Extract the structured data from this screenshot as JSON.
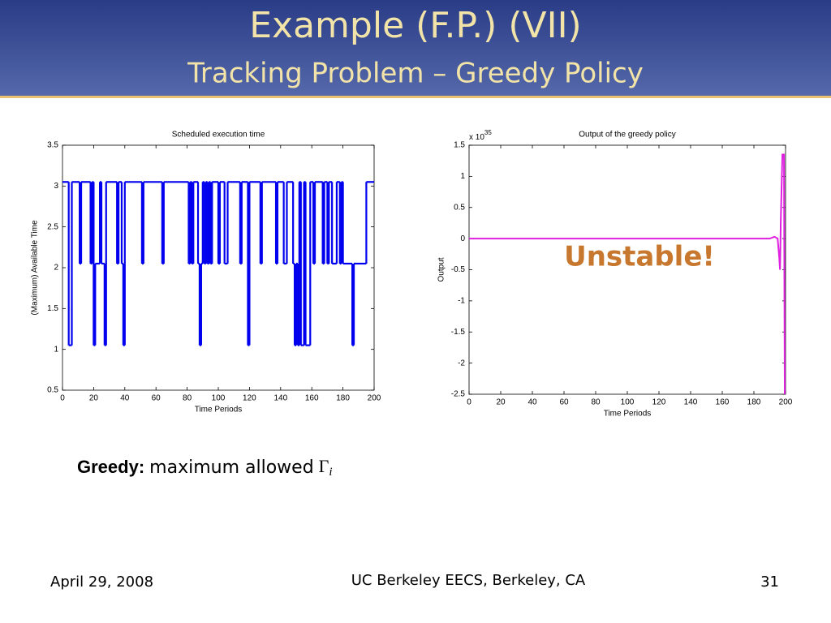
{
  "slide": {
    "title": "Example (F.P.) (VII)",
    "subtitle": "Tracking Problem – Greedy Policy",
    "caption": {
      "bold": "Greedy:",
      "text": "maximum allowed",
      "symbol": "Γ",
      "subscript": "i"
    },
    "footer": {
      "date": "April 29, 2008",
      "venue": "UC Berkeley EECS, Berkeley, CA",
      "page": "31"
    }
  },
  "chart_data": [
    {
      "type": "line",
      "step": true,
      "title": "Scheduled execution time",
      "xlabel": "Time Periods",
      "ylabel": "(Maximum) Available Time",
      "xlim": [
        0,
        200
      ],
      "ylim": [
        0.5,
        3.5
      ],
      "xticks": [
        0,
        20,
        40,
        60,
        80,
        100,
        120,
        140,
        160,
        180,
        200
      ],
      "yticks": [
        0.5,
        1,
        1.5,
        2,
        2.5,
        3,
        3.5
      ],
      "grid": false,
      "x": [
        0,
        4,
        6,
        11,
        12,
        18,
        19,
        20,
        21,
        24,
        25,
        27,
        28,
        35,
        36,
        38,
        39,
        40,
        51,
        52,
        64,
        65,
        81,
        82,
        83,
        84,
        87,
        88,
        89,
        90,
        91,
        92,
        93,
        94,
        95,
        96,
        100,
        101,
        104,
        106,
        114,
        115,
        119,
        120,
        127,
        128,
        137,
        138,
        142,
        144,
        148,
        149,
        150,
        151,
        152,
        153,
        155,
        156,
        159,
        161,
        162,
        167,
        168,
        170,
        171,
        173,
        176,
        178,
        179,
        180,
        186,
        187,
        195,
        200
      ],
      "series": [
        {
          "name": "Scheduled execution time",
          "color": "#0000ee",
          "values": [
            3.05,
            1.05,
            3.05,
            2.05,
            3.05,
            2.05,
            3.05,
            1.05,
            2.05,
            3.05,
            2.05,
            1.05,
            3.05,
            2.05,
            3.05,
            2.05,
            1.05,
            3.05,
            2.05,
            3.05,
            2.05,
            3.05,
            2.05,
            3.05,
            2.05,
            3.05,
            2.05,
            1.05,
            2.05,
            3.05,
            2.05,
            3.05,
            2.05,
            3.05,
            2.05,
            3.05,
            2.05,
            3.05,
            2.05,
            3.05,
            2.05,
            3.05,
            1.05,
            3.05,
            2.05,
            3.05,
            2.05,
            3.05,
            2.05,
            3.05,
            2.05,
            1.05,
            2.05,
            1.05,
            3.05,
            1.05,
            3.05,
            1.05,
            3.05,
            2.05,
            3.05,
            2.05,
            3.05,
            2.05,
            3.05,
            2.05,
            3.05,
            2.05,
            3.05,
            2.05,
            1.05,
            2.05,
            3.05,
            3.05
          ]
        }
      ]
    },
    {
      "type": "line",
      "step": false,
      "title": "Output of the greedy policy",
      "xlabel": "Time Periods",
      "ylabel": "Output",
      "y_multiplier": {
        "base": "x 10",
        "exponent": "35"
      },
      "annotation": "Unstable!",
      "xlim": [
        0,
        200
      ],
      "ylim": [
        -2.5,
        1.5
      ],
      "xticks": [
        0,
        20,
        40,
        60,
        80,
        100,
        120,
        140,
        160,
        180,
        200
      ],
      "yticks": [
        1.5,
        1,
        0.5,
        0,
        -0.5,
        -1,
        -1.5,
        -2,
        -2.5
      ],
      "grid": false,
      "x": [
        0,
        190,
        193,
        195,
        196,
        196.5,
        197,
        198,
        199,
        199.5
      ],
      "series": [
        {
          "name": "Output",
          "color": "#e020e0",
          "values": [
            0,
            0,
            0.03,
            0,
            -0.3,
            -0.5,
            0.3,
            1.35,
            1.35,
            -2.5
          ]
        }
      ]
    }
  ]
}
